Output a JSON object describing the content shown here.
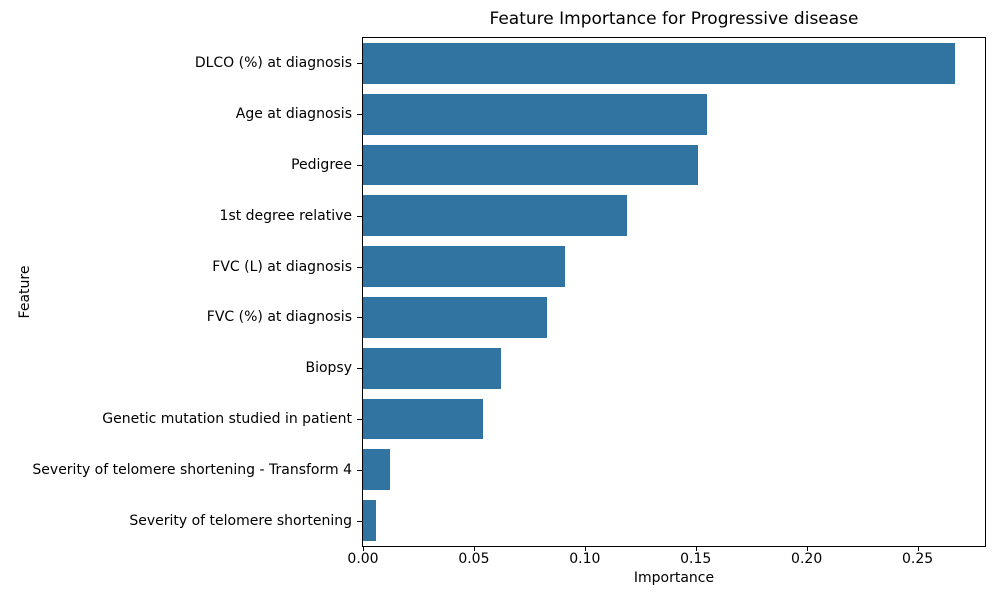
{
  "chart_data": {
    "type": "bar",
    "orientation": "horizontal",
    "title": "Feature Importance for Progressive disease",
    "xlabel": "Importance",
    "ylabel": "Feature",
    "categories": [
      "DLCO (%) at diagnosis",
      "Age at diagnosis",
      "Pedigree",
      "1st degree relative",
      "FVC (L) at diagnosis",
      "FVC (%) at diagnosis",
      "Biopsy",
      "Genetic mutation studied in patient",
      "Severity of telomere shortening - Transform 4",
      "Severity of telomere shortening"
    ],
    "values": [
      0.267,
      0.155,
      0.151,
      0.119,
      0.091,
      0.083,
      0.062,
      0.054,
      0.012,
      0.006
    ],
    "xlim": [
      0,
      0.2804
    ],
    "xticks": [
      0.0,
      0.05,
      0.1,
      0.15,
      0.2,
      0.25
    ],
    "xtick_labels": [
      "0.00",
      "0.05",
      "0.10",
      "0.15",
      "0.20",
      "0.25"
    ],
    "bar_color": "#3274a1",
    "spine_color": "#000000",
    "background": "#ffffff",
    "grid": false,
    "legend": null,
    "bar_fraction": 0.8
  }
}
